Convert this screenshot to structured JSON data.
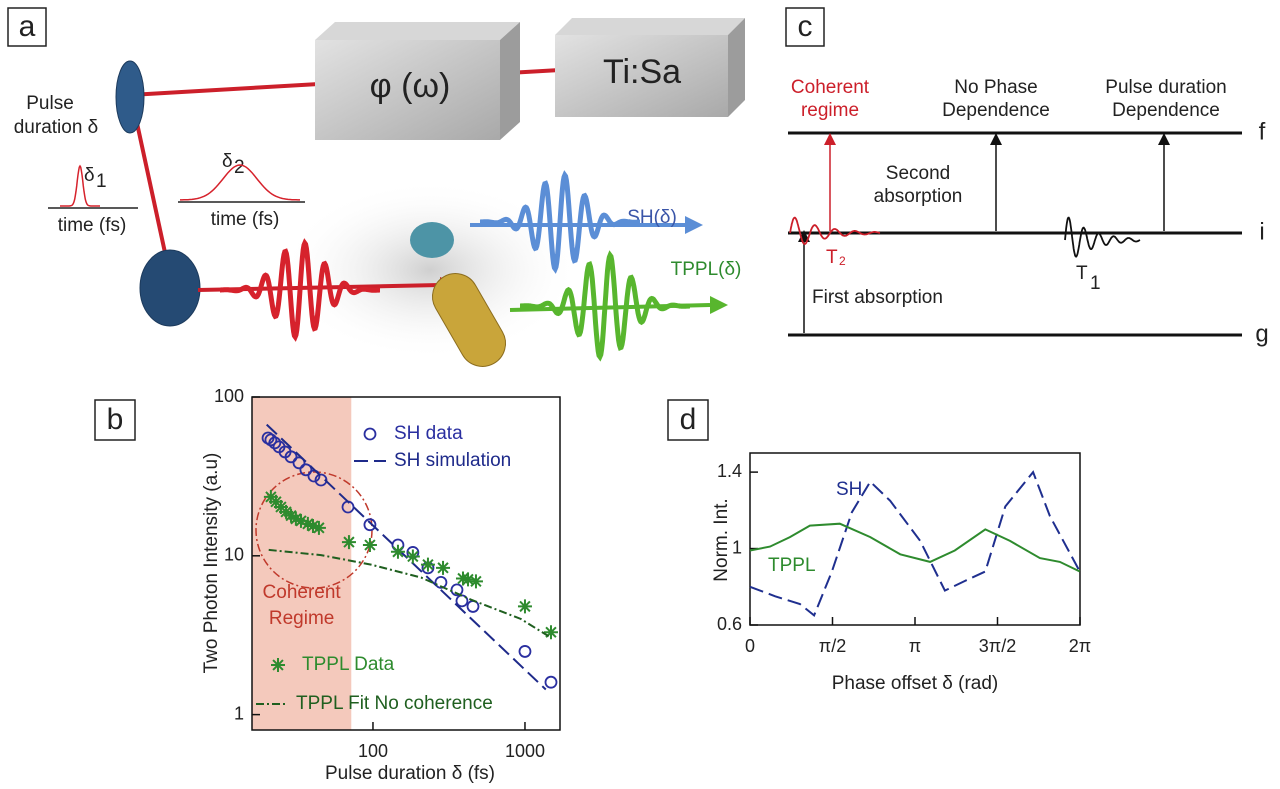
{
  "panels": {
    "a": {
      "label": "a",
      "box1": "φ (ω)",
      "box2": "Ti:Sa",
      "mirror_label": [
        "Pulse",
        "duration δ"
      ],
      "pulse1": "δ",
      "pulse1_sub": "1",
      "time1": "time  (fs)",
      "pulse2": "δ",
      "pulse2_sub": "2",
      "time2": "time (fs)",
      "sh": "SH(δ)",
      "tppl": "TPPL(δ)"
    },
    "c": {
      "label": "c",
      "coherent": [
        "Coherent",
        "regime"
      ],
      "no_phase": [
        "No Phase",
        "Dependence"
      ],
      "pulse_dur": [
        "Pulse duration",
        "Dependence"
      ],
      "second": [
        "Second",
        "absorption"
      ],
      "first": "First absorption",
      "t2": "T",
      "t2_sub": "2",
      "t1": "T",
      "t1_sub": "1",
      "levels": [
        "f",
        "i",
        "g"
      ]
    }
  },
  "chart_data": [
    {
      "type": "scatter",
      "panel_label": "b",
      "xlabel": "Pulse duration  δ (fs)",
      "ylabel": "Two Photon Intensity (a.u)",
      "xlog": true,
      "ylog": true,
      "xlim": [
        16,
        1700
      ],
      "ylim": [
        0.8,
        100
      ],
      "xticks": [
        100,
        1000
      ],
      "yticks": [
        1,
        10,
        100
      ],
      "highlight": {
        "label": [
          "Coherent",
          "Regime"
        ],
        "xlim": [
          16,
          72
        ],
        "color": "#f4c9bc"
      },
      "series": [
        {
          "name": "SH data",
          "color": "#2a2fa0",
          "marker": "circle",
          "x": [
            20.4,
            21.3,
            22.6,
            24.1,
            26.4,
            28.9,
            32.6,
            36.2,
            40.9,
            45.5,
            68.5,
            95.5,
            146,
            183,
            230,
            280,
            357,
            385,
            455,
            1000,
            1483
          ],
          "values": [
            55.2,
            53.7,
            51.4,
            48.5,
            45.1,
            42.0,
            38.5,
            34.8,
            31.8,
            30.0,
            20.3,
            15.7,
            11.7,
            10.5,
            8.4,
            6.8,
            6.1,
            5.2,
            4.8,
            2.5,
            1.6
          ]
        },
        {
          "name": "SH simulation",
          "color": "#1e2a8a",
          "dash": "dashed",
          "x": [
            20,
            1370
          ],
          "values": [
            67,
            1.44
          ]
        },
        {
          "name": "TPPL Data",
          "color": "#2e8b2e",
          "marker": "star",
          "x": [
            21.3,
            23.0,
            24.8,
            26.8,
            28.9,
            31.1,
            33.6,
            37.3,
            40.3,
            44.1,
            69.5,
            95.5,
            146,
            183,
            230,
            289,
            391,
            422,
            476,
            1000,
            1483
          ],
          "values": [
            23.5,
            21.9,
            20.3,
            18.9,
            17.9,
            17.1,
            16.6,
            15.9,
            15.4,
            15.0,
            12.2,
            11.7,
            10.6,
            9.9,
            8.8,
            8.4,
            7.2,
            7.1,
            6.9,
            4.8,
            3.3
          ]
        },
        {
          "name": "TPPL Fit No coherence",
          "color": "#1f5f1f",
          "dash": "dashdot",
          "x": [
            20.6,
            45.5,
            97,
            207,
            440,
            940,
            1483
          ],
          "values": [
            10.9,
            10.1,
            8.8,
            7.3,
            5.3,
            4.0,
            3.05
          ]
        }
      ]
    },
    {
      "type": "line",
      "panel_label": "d",
      "xlabel": "Phase offset δ (rad)",
      "ylabel": "Norm. Int.",
      "xlim": [
        0,
        6.2832
      ],
      "ylim": [
        0.6,
        1.5
      ],
      "xticks": [
        0,
        {
          "value": 1.5708,
          "label": "π/2"
        },
        {
          "value": 3.1416,
          "label": "π"
        },
        {
          "value": 4.7124,
          "label": "3π/2"
        },
        {
          "value": 6.2832,
          "label": "2π"
        }
      ],
      "yticks": [
        0.6,
        1,
        1.4
      ],
      "series": [
        {
          "name": "SH",
          "color": "#1f2f8f",
          "dash": "dashed",
          "x": [
            0,
            0.48,
            0.95,
            1.22,
            1.56,
            1.94,
            2.29,
            2.67,
            3.24,
            3.71,
            4.09,
            4.48,
            4.86,
            5.39,
            5.71,
            6.28
          ],
          "values": [
            0.8,
            0.75,
            0.71,
            0.65,
            0.88,
            1.19,
            1.35,
            1.25,
            1.04,
            0.78,
            0.83,
            0.88,
            1.22,
            1.4,
            1.17,
            0.88
          ]
        },
        {
          "name": "TPPL",
          "color": "#2e8b2e",
          "x": [
            0,
            0.38,
            0.76,
            1.14,
            1.71,
            2.29,
            2.86,
            3.43,
            3.9,
            4.48,
            4.95,
            5.52,
            5.9,
            6.28
          ],
          "values": [
            0.99,
            1.01,
            1.06,
            1.12,
            1.13,
            1.06,
            0.97,
            0.93,
            0.99,
            1.1,
            1.04,
            0.95,
            0.93,
            0.88
          ]
        }
      ]
    }
  ]
}
